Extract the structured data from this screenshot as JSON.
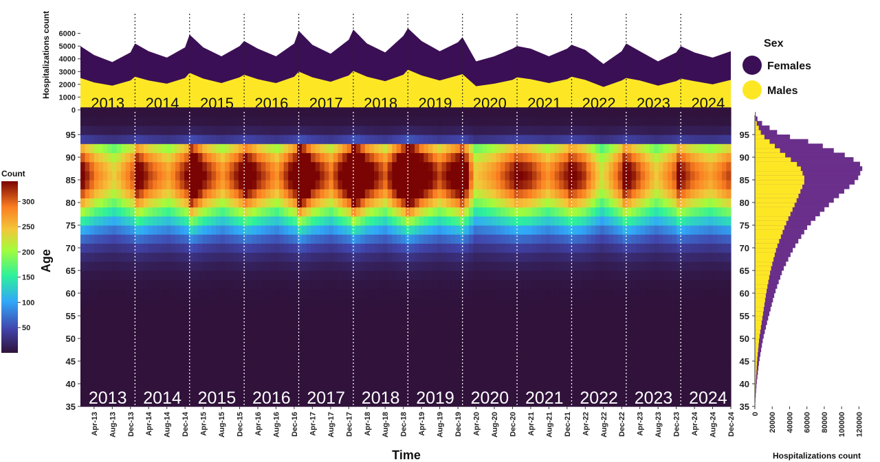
{
  "chart_data": [
    {
      "type": "area",
      "panel": "top",
      "ylabel": "Hospitalizations count",
      "ylim": [
        0,
        7000
      ],
      "yticks": [
        0,
        1000,
        2000,
        3000,
        4000,
        5000,
        6000
      ],
      "stacked": true,
      "series": [
        {
          "name": "Females",
          "color": "#3b0f55"
        },
        {
          "name": "Males",
          "color": "#fde725"
        }
      ],
      "x": [
        "2013-01",
        "2013-04",
        "2013-08",
        "2013-12",
        "2014-01",
        "2014-04",
        "2014-08",
        "2014-12",
        "2015-01",
        "2015-04",
        "2015-08",
        "2015-12",
        "2016-01",
        "2016-04",
        "2016-08",
        "2016-12",
        "2017-01",
        "2017-04",
        "2017-08",
        "2017-12",
        "2018-01",
        "2018-04",
        "2018-08",
        "2018-12",
        "2019-01",
        "2019-04",
        "2019-08",
        "2019-12",
        "2020-01",
        "2020-04",
        "2020-08",
        "2020-12",
        "2021-01",
        "2021-04",
        "2021-08",
        "2021-12",
        "2022-01",
        "2022-04",
        "2022-08",
        "2022-12",
        "2023-01",
        "2023-04",
        "2023-08",
        "2023-12",
        "2024-01",
        "2024-04",
        "2024-08",
        "2024-12"
      ],
      "males": [
        2500,
        2150,
        1900,
        2300,
        2600,
        2300,
        2050,
        2500,
        2900,
        2450,
        2100,
        2550,
        2750,
        2400,
        2100,
        2600,
        3000,
        2550,
        2200,
        2700,
        3050,
        2600,
        2250,
        2750,
        3150,
        2700,
        2300,
        2700,
        2800,
        1850,
        2050,
        2350,
        2550,
        2400,
        2100,
        2400,
        2600,
        2350,
        1800,
        2300,
        2500,
        2300,
        1900,
        2250,
        2450,
        2250,
        2000,
        2350
      ],
      "totals": [
        5000,
        4300,
        3750,
        4500,
        5200,
        4600,
        4100,
        4900,
        5900,
        4900,
        4200,
        5000,
        5400,
        4800,
        4200,
        5200,
        6200,
        5100,
        4400,
        5500,
        6300,
        5200,
        4500,
        5800,
        6400,
        5400,
        4600,
        5300,
        5700,
        3800,
        4200,
        4800,
        5000,
        4800,
        4200,
        4800,
        5100,
        4700,
        3600,
        4600,
        5200,
        4600,
        3800,
        4500,
        5000,
        4500,
        4100,
        4600
      ],
      "year_labels": [
        "2013",
        "2014",
        "2015",
        "2016",
        "2017",
        "2018",
        "2019",
        "2020",
        "2021",
        "2022",
        "2023",
        "2024"
      ]
    },
    {
      "type": "heatmap",
      "panel": "main",
      "xlabel": "Time",
      "ylabel": "Age",
      "ylim": [
        35,
        100
      ],
      "yticks": [
        35,
        40,
        45,
        50,
        55,
        60,
        65,
        70,
        75,
        80,
        85,
        90,
        95
      ],
      "colorbar": {
        "title": "Count",
        "ticks": [
          50,
          100,
          150,
          200,
          250,
          300
        ],
        "range": [
          0,
          340
        ]
      },
      "x_tick_labels": [
        "Apr-13",
        "Aug-13",
        "Dec-13",
        "Apr-14",
        "Aug-14",
        "Dec-14",
        "Apr-15",
        "Aug-15",
        "Dec-15",
        "Apr-16",
        "Aug-16",
        "Dec-16",
        "Apr-17",
        "Aug-17",
        "Dec-17",
        "Apr-18",
        "Aug-18",
        "Dec-18",
        "Apr-19",
        "Aug-19",
        "Dec-19",
        "Apr-20",
        "Aug-20",
        "Dec-20",
        "Apr-21",
        "Aug-21",
        "Dec-21",
        "Apr-22",
        "Aug-22",
        "Dec-22",
        "Apr-23",
        "Aug-23",
        "Dec-23",
        "Apr-24",
        "Aug-24",
        "Dec-24"
      ],
      "year_labels": [
        "2013",
        "2014",
        "2015",
        "2016",
        "2017",
        "2018",
        "2019",
        "2020",
        "2021",
        "2022",
        "2023",
        "2024"
      ],
      "peak_age": 86,
      "peak_count": 330
    },
    {
      "type": "bar",
      "panel": "right",
      "orientation": "horizontal",
      "xlabel": "Hospitalizations count",
      "xlim": [
        0,
        130000
      ],
      "xticks": [
        0,
        20000,
        40000,
        60000,
        80000,
        100000,
        120000
      ],
      "ylim": [
        35,
        100
      ],
      "yticks": [
        35,
        40,
        45,
        50,
        55,
        60,
        65,
        70,
        75,
        80,
        85,
        90,
        95
      ],
      "stacked": true,
      "series": [
        {
          "name": "Males",
          "color": "#fde725"
        },
        {
          "name": "Females",
          "color": "#6a2f8a"
        }
      ],
      "ages": [
        40,
        45,
        50,
        55,
        60,
        65,
        70,
        75,
        80,
        85,
        88,
        90,
        93,
        95,
        98
      ],
      "males": [
        1000,
        2500,
        5000,
        9000,
        13000,
        18000,
        25000,
        35000,
        47000,
        58000,
        52000,
        38000,
        20000,
        8000,
        1000
      ],
      "totals": [
        2000,
        5000,
        9500,
        16000,
        23000,
        32000,
        45000,
        62000,
        88000,
        118000,
        125000,
        110000,
        72000,
        30000,
        4000
      ]
    }
  ],
  "legend": {
    "title": "Sex",
    "items": [
      {
        "label": "Females",
        "color": "#3b0f55"
      },
      {
        "label": "Males",
        "color": "#fde725"
      }
    ]
  }
}
